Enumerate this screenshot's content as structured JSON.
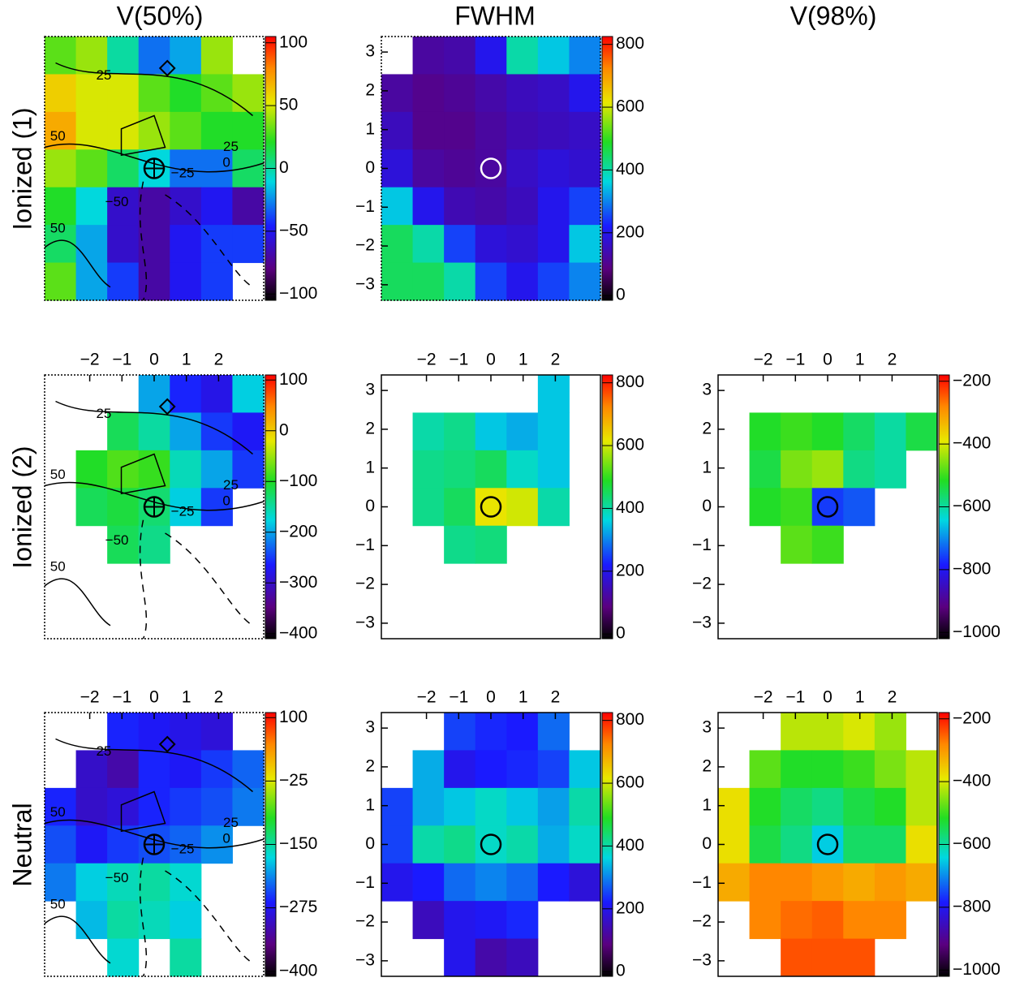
{
  "column_titles": [
    "V(50%)",
    "FWHM",
    "V(98%)"
  ],
  "row_labels": [
    "Ionized (1)",
    "Ionized (2)",
    "Neutral"
  ],
  "chart_data": [
    {
      "type": "heatmap",
      "colorscale": "rainbow",
      "xlim": [
        -3.4,
        3.4
      ],
      "ylim": [
        -3.4,
        3.4
      ],
      "zlim": [
        -105,
        105
      ],
      "zticks": [
        {
          "value": -100,
          "label": "−100"
        },
        {
          "value": -50,
          "label": "−50"
        },
        0,
        50,
        100
      ],
      "contour_labels": [
        "25",
        "50",
        "25",
        "0",
        "−25",
        "−50",
        "50"
      ],
      "z": [
        [
          30,
          40,
          0,
          -30,
          -20,
          40,
          null
        ],
        [
          60,
          50,
          50,
          30,
          20,
          30,
          40
        ],
        [
          70,
          50,
          50,
          40,
          30,
          20,
          20
        ],
        [
          40,
          30,
          10,
          -10,
          -30,
          -30,
          10
        ],
        [
          20,
          -10,
          -60,
          -70,
          -60,
          -50,
          -70
        ],
        [
          10,
          -20,
          -60,
          -70,
          -50,
          -40,
          -40
        ],
        [
          30,
          -20,
          -40,
          -70,
          -50,
          -40,
          null
        ]
      ]
    },
    {
      "type": "heatmap",
      "colorscale": "rainbow",
      "xlim": [
        -3.4,
        3.4
      ],
      "ylim": [
        -3.4,
        3.4
      ],
      "yticks": [
        {
          "value": -3,
          "label": "−3"
        },
        {
          "value": -2,
          "label": "−2"
        },
        {
          "value": -1,
          "label": "−1"
        },
        0,
        1,
        2,
        3
      ],
      "zlim": [
        -15,
        825
      ],
      "zticks": [
        0,
        200,
        400,
        600,
        800
      ],
      "z": [
        [
          null,
          120,
          130,
          200,
          400,
          350,
          300
        ],
        [
          120,
          100,
          110,
          130,
          150,
          160,
          200
        ],
        [
          150,
          100,
          100,
          120,
          140,
          150,
          160
        ],
        [
          180,
          120,
          110,
          120,
          160,
          180,
          170
        ],
        [
          350,
          200,
          140,
          130,
          150,
          200,
          250
        ],
        [
          450,
          400,
          250,
          180,
          170,
          200,
          350
        ],
        [
          450,
          450,
          400,
          250,
          200,
          250,
          300
        ]
      ]
    },
    {
      "type": "heatmap",
      "colorscale": "rainbow",
      "xlim": [
        -3.4,
        3.4
      ],
      "ylim": [
        -3.4,
        3.4
      ],
      "xticks": [
        {
          "value": -2,
          "label": "−2"
        },
        {
          "value": -1,
          "label": "−1"
        },
        0,
        1,
        2
      ],
      "zlim": [
        -410,
        110
      ],
      "zticks": [
        {
          "value": -400,
          "label": "−400"
        },
        {
          "value": -300,
          "label": "−300"
        },
        {
          "value": -200,
          "label": "−200"
        },
        {
          "value": -100,
          "label": "−100"
        },
        0,
        100
      ],
      "contour_labels": [
        "25",
        "50",
        "25",
        "0",
        "−25",
        "−50",
        "50"
      ],
      "z": [
        [
          null,
          null,
          null,
          -200,
          -260,
          -280,
          -180
        ],
        [
          null,
          null,
          -120,
          -150,
          -200,
          -250,
          -270
        ],
        [
          null,
          -100,
          -80,
          -90,
          -160,
          -200,
          -250
        ],
        [
          null,
          -120,
          -110,
          -130,
          -180,
          -250,
          null
        ],
        [
          null,
          null,
          -120,
          -140,
          null,
          null,
          null
        ],
        [
          null,
          null,
          null,
          null,
          null,
          null,
          null
        ],
        [
          null,
          null,
          null,
          null,
          null,
          null,
          null
        ]
      ]
    },
    {
      "type": "heatmap",
      "colorscale": "rainbow",
      "xlim": [
        -3.4,
        3.4
      ],
      "ylim": [
        -3.4,
        3.4
      ],
      "xticks": [
        {
          "value": -2,
          "label": "−2"
        },
        {
          "value": -1,
          "label": "−1"
        },
        0,
        1,
        2
      ],
      "yticks": [
        {
          "value": -3,
          "label": "−3"
        },
        {
          "value": -2,
          "label": "−2"
        },
        {
          "value": -1,
          "label": "−1"
        },
        0,
        1,
        2,
        3
      ],
      "zlim": [
        -15,
        825
      ],
      "zticks": [
        0,
        200,
        400,
        600,
        800
      ],
      "z": [
        [
          null,
          null,
          null,
          null,
          null,
          350,
          null
        ],
        [
          null,
          400,
          420,
          350,
          330,
          350,
          null
        ],
        [
          null,
          420,
          430,
          450,
          380,
          350,
          null
        ],
        [
          null,
          420,
          450,
          620,
          600,
          400,
          null
        ],
        [
          null,
          null,
          420,
          430,
          null,
          null,
          null
        ],
        [
          null,
          null,
          null,
          null,
          null,
          null,
          null
        ],
        [
          null,
          null,
          null,
          null,
          null,
          null,
          null
        ]
      ]
    },
    {
      "type": "heatmap",
      "colorscale": "rainbow",
      "xlim": [
        -3.4,
        3.4
      ],
      "ylim": [
        -3.4,
        3.4
      ],
      "xticks": [
        {
          "value": -2,
          "label": "−2"
        },
        {
          "value": -1,
          "label": "−1"
        },
        0,
        1,
        2
      ],
      "yticks": [
        {
          "value": -3,
          "label": "−3"
        },
        {
          "value": -2,
          "label": "−2"
        },
        {
          "value": -1,
          "label": "−1"
        },
        0,
        1,
        2,
        3
      ],
      "zlim": [
        -1020,
        -180
      ],
      "zticks": [
        {
          "value": -1000,
          "label": "−1000"
        },
        {
          "value": -800,
          "label": "−800"
        },
        {
          "value": -600,
          "label": "−600"
        },
        {
          "value": -400,
          "label": "−400"
        },
        {
          "value": -200,
          "label": "−200"
        }
      ],
      "z": [
        [
          null,
          null,
          null,
          null,
          null,
          null,
          null
        ],
        [
          null,
          -520,
          -500,
          -520,
          -560,
          -600,
          -540
        ],
        [
          null,
          -540,
          -460,
          -440,
          -580,
          -600,
          null
        ],
        [
          null,
          -520,
          -500,
          -760,
          -740,
          null,
          null
        ],
        [
          null,
          null,
          -480,
          -500,
          null,
          null,
          null
        ],
        [
          null,
          null,
          null,
          null,
          null,
          null,
          null
        ],
        [
          null,
          null,
          null,
          null,
          null,
          null,
          null
        ]
      ]
    },
    {
      "type": "heatmap",
      "colorscale": "rainbow",
      "xlim": [
        -3.4,
        3.4
      ],
      "ylim": [
        -3.4,
        3.4
      ],
      "xticks": [
        {
          "value": -2,
          "label": "−2"
        },
        {
          "value": -1,
          "label": "−1"
        },
        0,
        1,
        2
      ],
      "zlim": [
        -410,
        110
      ],
      "zticks": [
        {
          "value": -400,
          "label": "−400"
        },
        {
          "value": -275,
          "label": "−275"
        },
        {
          "value": -150,
          "label": "−150"
        },
        {
          "value": -25,
          "label": "−25"
        },
        100
      ],
      "contour_labels": [
        "25",
        "50",
        "25",
        "0",
        "−25",
        "−50",
        "50"
      ],
      "z": [
        [
          null,
          null,
          -260,
          -270,
          -280,
          -290,
          null
        ],
        [
          null,
          -300,
          -320,
          -260,
          -270,
          -250,
          -230
        ],
        [
          -260,
          -300,
          -290,
          -260,
          -250,
          -240,
          -220
        ],
        [
          -240,
          -270,
          -250,
          -240,
          -230,
          -210,
          null
        ],
        [
          -220,
          -180,
          -160,
          -150,
          -170,
          null,
          null
        ],
        [
          null,
          -190,
          -150,
          -160,
          -180,
          null,
          null
        ],
        [
          null,
          null,
          -170,
          null,
          -150,
          null,
          null
        ]
      ]
    },
    {
      "type": "heatmap",
      "colorscale": "rainbow",
      "xlim": [
        -3.4,
        3.4
      ],
      "ylim": [
        -3.4,
        3.4
      ],
      "xticks": [
        {
          "value": -2,
          "label": "−2"
        },
        {
          "value": -1,
          "label": "−1"
        },
        0,
        1,
        2
      ],
      "yticks": [
        {
          "value": -3,
          "label": "−3"
        },
        {
          "value": -2,
          "label": "−2"
        },
        {
          "value": -1,
          "label": "−1"
        },
        0,
        1,
        2,
        3
      ],
      "zlim": [
        -15,
        825
      ],
      "zticks": [
        0,
        200,
        400,
        600,
        800
      ],
      "z": [
        [
          null,
          null,
          250,
          230,
          220,
          280,
          null
        ],
        [
          null,
          330,
          200,
          220,
          230,
          250,
          350
        ],
        [
          250,
          330,
          350,
          380,
          350,
          320,
          400
        ],
        [
          250,
          400,
          420,
          380,
          400,
          330,
          380
        ],
        [
          200,
          220,
          280,
          300,
          280,
          220,
          180
        ],
        [
          null,
          150,
          200,
          210,
          230,
          null,
          null
        ],
        [
          null,
          null,
          200,
          130,
          150,
          null,
          null
        ]
      ]
    },
    {
      "type": "heatmap",
      "colorscale": "rainbow",
      "xlim": [
        -3.4,
        3.4
      ],
      "ylim": [
        -3.4,
        3.4
      ],
      "xticks": [
        {
          "value": -2,
          "label": "−2"
        },
        {
          "value": -1,
          "label": "−1"
        },
        0,
        1,
        2
      ],
      "yticks": [
        {
          "value": -3,
          "label": "−3"
        },
        {
          "value": -2,
          "label": "−2"
        },
        {
          "value": -1,
          "label": "−1"
        },
        0,
        1,
        2,
        3
      ],
      "zlim": [
        -1020,
        -180
      ],
      "zticks": [
        {
          "value": -1000,
          "label": "−1000"
        },
        {
          "value": -800,
          "label": "−800"
        },
        {
          "value": -600,
          "label": "−600"
        },
        {
          "value": -400,
          "label": "−400"
        },
        {
          "value": -200,
          "label": "−200"
        }
      ],
      "z": [
        [
          null,
          null,
          -420,
          -420,
          -400,
          -440,
          null
        ],
        [
          null,
          -480,
          -520,
          -520,
          -500,
          -460,
          -420
        ],
        [
          -380,
          -520,
          -560,
          -580,
          -540,
          -520,
          -420
        ],
        [
          -380,
          -540,
          -580,
          -650,
          -560,
          -560,
          -380
        ],
        [
          -320,
          -280,
          -280,
          -300,
          -320,
          -300,
          -320
        ],
        [
          null,
          -280,
          -260,
          -250,
          -280,
          -280,
          null
        ],
        [
          null,
          null,
          -240,
          -240,
          -240,
          null,
          null
        ]
      ]
    }
  ]
}
